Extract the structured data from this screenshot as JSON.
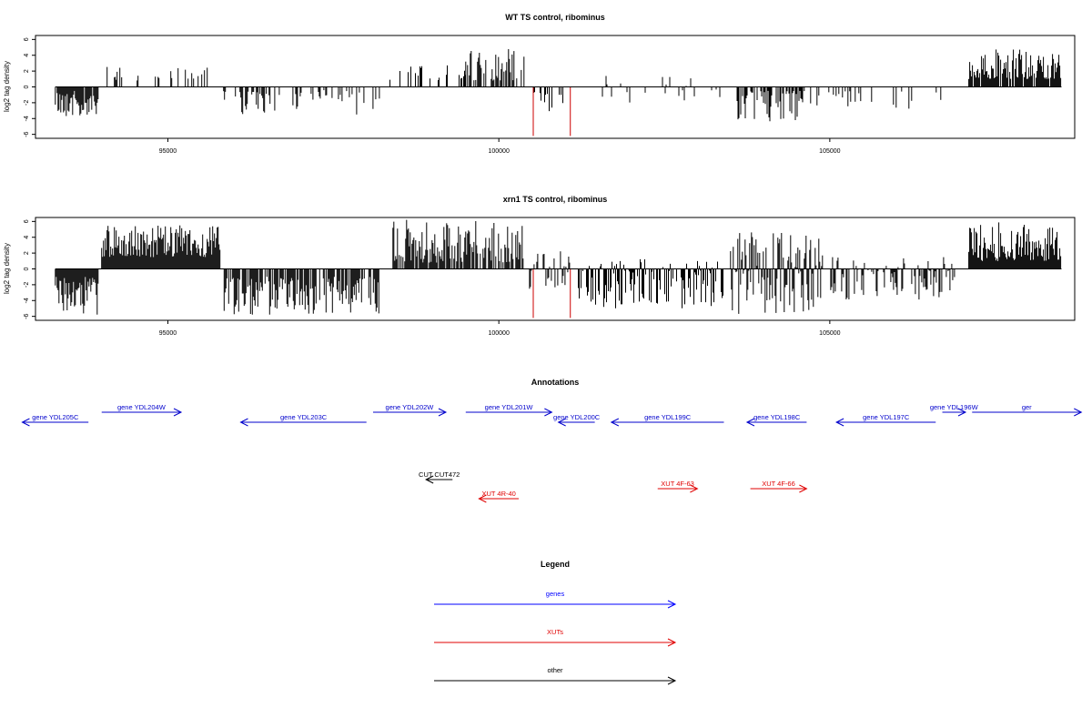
{
  "chart_data": [
    {
      "type": "bar",
      "title": "WT TS control, ribominus",
      "ylabel": "log2 tag density",
      "xlim": [
        93000,
        108700
      ],
      "ylim": [
        -6.5,
        6.5
      ],
      "x_ticks": [
        95000,
        100000,
        105000
      ],
      "x_tick_labels": [
        "95000",
        "100000",
        "105000"
      ],
      "y_ticks": [
        -6,
        -4,
        -2,
        0,
        2,
        4,
        6
      ],
      "y_tick_labels": [
        "-6",
        "-4",
        "-2",
        "0",
        "2",
        "4",
        "6"
      ],
      "grid": false,
      "colors": {
        "bars": "#000000",
        "highlight": "#cc0000"
      },
      "segments": [
        {
          "from": 93300,
          "to": 93950,
          "min": -3.8,
          "max": -0.5,
          "density": 0.9
        },
        {
          "from": 94000,
          "to": 94650,
          "min": 0.8,
          "max": 2.6,
          "density": 0.22
        },
        {
          "from": 94700,
          "to": 95700,
          "min": 0.8,
          "max": 2.6,
          "density": 0.2
        },
        {
          "from": 95800,
          "to": 96600,
          "min": -3.5,
          "max": -0.5,
          "density": 0.45
        },
        {
          "from": 96600,
          "to": 98200,
          "min": -3.5,
          "max": -0.4,
          "density": 0.25
        },
        {
          "from": 98300,
          "to": 99500,
          "min": 0.8,
          "max": 2.8,
          "density": 0.25
        },
        {
          "from": 99500,
          "to": 100400,
          "min": 0.8,
          "max": 4.9,
          "density": 0.5
        },
        {
          "from": 100500,
          "to": 101000,
          "min": -3.5,
          "max": -0.5,
          "density": 0.3
        },
        {
          "from": 101400,
          "to": 103500,
          "min": -2.0,
          "max": 1.6,
          "density": 0.18
        },
        {
          "from": 103600,
          "to": 104600,
          "min": -4.5,
          "max": -0.5,
          "density": 0.55
        },
        {
          "from": 104600,
          "to": 106800,
          "min": -2.8,
          "max": -0.5,
          "density": 0.18
        },
        {
          "from": 107100,
          "to": 108500,
          "min": 1.0,
          "max": 4.9,
          "density": 0.9
        }
      ],
      "highlights": [
        {
          "x": 100520,
          "y": -6.2
        },
        {
          "x": 101080,
          "y": -6.2
        }
      ]
    },
    {
      "type": "bar",
      "title": "xrn1 TS control, ribominus",
      "ylabel": "log2 tag density",
      "xlim": [
        93000,
        108700
      ],
      "ylim": [
        -6.5,
        6.5
      ],
      "x_ticks": [
        95000,
        100000,
        105000
      ],
      "x_tick_labels": [
        "95000",
        "100000",
        "105000"
      ],
      "y_ticks": [
        -6,
        -4,
        -2,
        0,
        2,
        4,
        6
      ],
      "y_tick_labels": [
        "-6",
        "-4",
        "-2",
        "0",
        "2",
        "4",
        "6"
      ],
      "grid": false,
      "colors": {
        "bars": "#000000",
        "highlight": "#cc0000"
      },
      "segments": [
        {
          "from": 93300,
          "to": 93950,
          "min": -5.8,
          "max": -1.0,
          "density": 1.0
        },
        {
          "from": 94000,
          "to": 95800,
          "min": 1.5,
          "max": 5.5,
          "density": 1.0
        },
        {
          "from": 95850,
          "to": 98200,
          "min": -5.8,
          "max": -1.0,
          "density": 0.85
        },
        {
          "from": 98400,
          "to": 100400,
          "min": 0.8,
          "max": 6.2,
          "density": 0.75
        },
        {
          "from": 100450,
          "to": 101100,
          "min": -3.0,
          "max": 2.5,
          "density": 0.4
        },
        {
          "from": 101200,
          "to": 103400,
          "min": -5.0,
          "max": 1.5,
          "density": 0.7
        },
        {
          "from": 103500,
          "to": 104900,
          "min": -6.0,
          "max": 4.8,
          "density": 0.9
        },
        {
          "from": 105000,
          "to": 106900,
          "min": -4.0,
          "max": 1.5,
          "density": 0.6
        },
        {
          "from": 107100,
          "to": 108500,
          "min": 1.0,
          "max": 5.9,
          "density": 1.0
        }
      ],
      "highlights": [
        {
          "x": 100520,
          "y": -6.2
        },
        {
          "x": 101080,
          "y": -6.2
        }
      ]
    }
  ],
  "annotations": {
    "title": "Annotations",
    "features": [
      {
        "label": "gene YDL205C",
        "start": 92800,
        "end": 93800,
        "strand": "-",
        "row": 1,
        "color": "#0000cc"
      },
      {
        "label": "gene YDL204W",
        "start": 94000,
        "end": 95200,
        "strand": "+",
        "row": 0,
        "color": "#0000cc"
      },
      {
        "label": "gene YDL203C",
        "start": 96100,
        "end": 98000,
        "strand": "-",
        "row": 1,
        "color": "#0000cc"
      },
      {
        "label": "gene YDL202W",
        "start": 98100,
        "end": 99200,
        "strand": "+",
        "row": 0,
        "color": "#0000cc"
      },
      {
        "label": "gene YDL201W",
        "start": 99500,
        "end": 100800,
        "strand": "+",
        "row": 0,
        "color": "#0000cc"
      },
      {
        "label": "gene YDL200C",
        "start": 100900,
        "end": 101450,
        "strand": "-",
        "row": 1,
        "color": "#0000cc"
      },
      {
        "label": "gene YDL199C",
        "start": 101700,
        "end": 103400,
        "strand": "-",
        "row": 1,
        "color": "#0000cc"
      },
      {
        "label": "gene YDL198C",
        "start": 103750,
        "end": 104650,
        "strand": "-",
        "row": 1,
        "color": "#0000cc"
      },
      {
        "label": "gene YDL197C",
        "start": 105100,
        "end": 106600,
        "strand": "-",
        "row": 1,
        "color": "#0000cc"
      },
      {
        "label": "gene YDL196W",
        "start": 106700,
        "end": 107050,
        "strand": "+",
        "row": 0,
        "color": "#0000cc"
      },
      {
        "label": "ger",
        "start": 107150,
        "end": 108800,
        "strand": "+",
        "row": 0,
        "color": "#0000cc"
      },
      {
        "label": "CUT CUT472",
        "start": 98900,
        "end": 99300,
        "strand": "-",
        "row": 2,
        "color": "#000000"
      },
      {
        "label": "XUT 4R-40",
        "start": 99700,
        "end": 100300,
        "strand": "-",
        "row": 4,
        "color": "#e00000"
      },
      {
        "label": "XUT 4F-63",
        "start": 102400,
        "end": 103000,
        "strand": "+",
        "row": 3,
        "color": "#e00000"
      },
      {
        "label": "XUT 4F-66",
        "start": 103800,
        "end": 104650,
        "strand": "+",
        "row": 3,
        "color": "#e00000"
      }
    ]
  },
  "legend": {
    "title": "Legend",
    "items": [
      {
        "label": "genes",
        "color": "#0000ff"
      },
      {
        "label": "XUTs",
        "color": "#e00000"
      },
      {
        "label": "other",
        "color": "#000000"
      }
    ]
  }
}
